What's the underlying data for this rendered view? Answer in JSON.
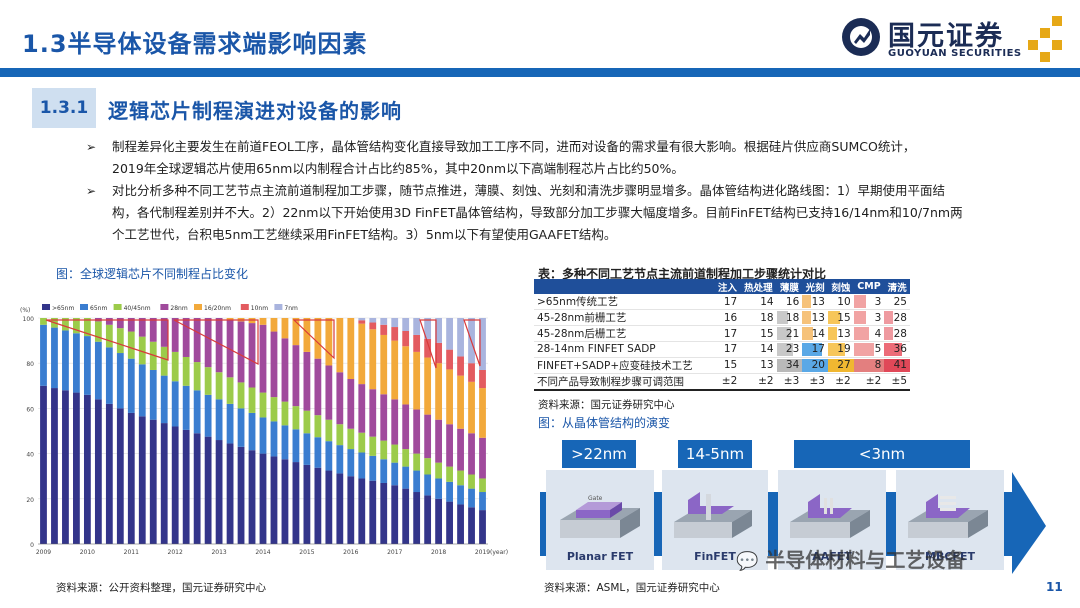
{
  "header": {
    "title": "1.3半导体设备需求端影响因素"
  },
  "logo": {
    "name_cn": "国元证券",
    "name_en": "GUOYUAN SECURITIES"
  },
  "section": {
    "number": "1.3.1",
    "title": "逻辑芯片制程演进对设备的影响"
  },
  "bullets": [
    {
      "line1": "制程差异化主要发生在前道FEOL工序，晶体管结构变化直接导致加工工序不同，进而对设备的需求量有很大影响。根据硅片供应商SUMCO统计，",
      "line2": "2019年全球逻辑芯片使用65nm以内制程合计占比约85%，其中20nm以下高端制程芯片占比约50%。",
      "line3": ""
    },
    {
      "line1": "对比分析多种不同工艺节点主流前道制程加工步骤，随节点推进，薄膜、刻蚀、光刻和清洗步骤明显增多。晶体管结构进化路线图：1）早期使用平面结",
      "line2": "构，各代制程差别并不大。2）22nm以下开始使用3D FinFET晶体管结构，导致部分加工步骤大幅度增多。目前FinFET结构已支持16/14nm和10/7nm两",
      "line3": "个工艺世代，台积电5nm工艺继续采用FinFET结构。3）5nm以下有望使用GAAFET结构。"
    }
  ],
  "left_caption": "图：全球逻辑芯片不同制程占比变化",
  "left_source": "资料来源：公开资料整理，国元证券研究中心",
  "chart_data": {
    "type": "bar",
    "stacked": true,
    "ylabel": "(%)",
    "ylim": [
      0,
      100
    ],
    "yticks": [
      "0",
      "20",
      "40",
      "60",
      "80",
      "100"
    ],
    "xlabel": "(year)",
    "xticks": [
      "2009",
      "2010",
      "2011",
      "2012",
      "2013",
      "2014",
      "2015",
      "2016",
      "2017",
      "2018",
      "2019"
    ],
    "series": [
      {
        "name": ">65nm",
        "color": "#33358a",
        "values": [
          70,
          66,
          58,
          52,
          46,
          40,
          35,
          30,
          26,
          20,
          15
        ]
      },
      {
        "name": "65nm",
        "color": "#3a7dd0",
        "values": [
          27,
          26,
          24,
          20,
          18,
          16,
          14,
          12,
          10,
          9,
          8
        ]
      },
      {
        "name": "40/45nm",
        "color": "#9ccb4a",
        "values": [
          3,
          8,
          12,
          13,
          12,
          11,
          10,
          9,
          8,
          7,
          6
        ]
      },
      {
        "name": "28nm",
        "color": "#a04a9c",
        "values": [
          0,
          0,
          6,
          15,
          24,
          30,
          26,
          22,
          20,
          19,
          18
        ]
      },
      {
        "name": "16/20nm",
        "color": "#f2a93b",
        "values": [
          0,
          0,
          0,
          0,
          0,
          3,
          15,
          27,
          26,
          25,
          22
        ]
      },
      {
        "name": "10nm",
        "color": "#e35b60",
        "values": [
          0,
          0,
          0,
          0,
          0,
          0,
          0,
          0,
          6,
          9,
          8
        ]
      },
      {
        "name": "7nm",
        "color": "#a9b4de",
        "values": [
          0,
          0,
          0,
          0,
          0,
          0,
          0,
          0,
          4,
          11,
          23
        ]
      }
    ]
  },
  "table": {
    "caption": "表：多种不同工艺节点主流前道制程加工步骤统计对比",
    "headers": [
      "",
      "注入",
      "热处理",
      "薄膜",
      "光刻",
      "刻蚀",
      "CMP",
      "清洗"
    ],
    "rows": [
      {
        "name": ">65nm传统工艺",
        "values": [
          "17",
          "14",
          "16",
          "13",
          "10",
          "3",
          "25"
        ]
      },
      {
        "name": "45-28nm前栅工艺",
        "values": [
          "16",
          "18",
          "18",
          "13",
          "15",
          "3",
          "28"
        ]
      },
      {
        "name": "45-28nm后栅工艺",
        "values": [
          "17",
          "15",
          "21",
          "14",
          "13",
          "4",
          "28"
        ]
      },
      {
        "name": "28-14nm FINFET SADP",
        "values": [
          "17",
          "14",
          "23",
          "17",
          "19",
          "5",
          "36"
        ]
      },
      {
        "name": "FINFET+SADP+应变硅技术工艺",
        "values": [
          "15",
          "13",
          "34",
          "20",
          "27",
          "8",
          "41"
        ]
      },
      {
        "name": "不同产品导致制程步骤可调范围",
        "values": [
          "±2",
          "±2",
          "±3",
          "±3",
          "±2",
          "±2",
          "±5"
        ]
      }
    ],
    "source": "资料来源：国元证券研究中心"
  },
  "diagram": {
    "caption": "图：从晶体管结构的演变",
    "nodes": [
      ">22nm",
      "14-5nm",
      "<3nm"
    ],
    "structures": [
      "Planar FET",
      "FinFET",
      "AAFET",
      "MBCFET"
    ],
    "gate_label": "Gate",
    "source": "资料来源：ASML，国元证券研究中心"
  },
  "watermark": "半导体材料与工艺设备",
  "page_number": "11"
}
